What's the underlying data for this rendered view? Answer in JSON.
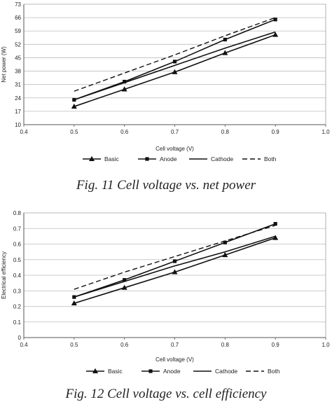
{
  "captions": [
    "Fig. 11 Cell voltage vs. net power",
    "Fig. 12 Cell voltage vs. cell efficiency"
  ],
  "chart_data": [
    {
      "type": "line",
      "xlabel": "Cell voltage (V)",
      "ylabel": "Net power (W)",
      "xlim": [
        0.4,
        1.0
      ],
      "ylim": [
        10,
        73
      ],
      "xticks": [
        "0.4",
        "0.5",
        "0.6",
        "0.7",
        "0.8",
        "0.9",
        "1.0"
      ],
      "yticks": [
        "10",
        "17",
        "24",
        "31",
        "38",
        "45",
        "52",
        "59",
        "66",
        "73"
      ],
      "grid": "horizontal",
      "legend": "bottom",
      "x": [
        0.5,
        0.6,
        0.7,
        0.8,
        0.9
      ],
      "series": [
        {
          "name": "Basic",
          "values": [
            19.5,
            28.5,
            37.5,
            47.5,
            57.0
          ],
          "marker": "triangle",
          "dash": "solid"
        },
        {
          "name": "Anode",
          "values": [
            23.0,
            32.5,
            43.0,
            54.5,
            65.0
          ],
          "marker": "square",
          "dash": "solid"
        },
        {
          "name": "Cathode",
          "values": [
            23.0,
            32.0,
            41.0,
            50.0,
            58.5
          ],
          "marker": "none",
          "dash": "solid"
        },
        {
          "name": "Both",
          "values": [
            27.5,
            37.0,
            46.5,
            56.5,
            66.0
          ],
          "marker": "none",
          "dash": "dashed"
        }
      ]
    },
    {
      "type": "line",
      "xlabel": "Cell voltage (V)",
      "ylabel": "Electrical efficiency",
      "xlim": [
        0.4,
        1.0
      ],
      "ylim": [
        0,
        0.8
      ],
      "xticks": [
        "0.4",
        "0.5",
        "0.6",
        "0.7",
        "0.8",
        "0.9",
        "1.0"
      ],
      "yticks": [
        "0",
        "0.1",
        "0.2",
        "0.3",
        "0.4",
        "0.5",
        "0.6",
        "0.7",
        "0.8"
      ],
      "grid": "horizontal",
      "legend": "bottom",
      "x": [
        0.5,
        0.6,
        0.7,
        0.8,
        0.9
      ],
      "series": [
        {
          "name": "Basic",
          "values": [
            0.22,
            0.32,
            0.42,
            0.53,
            0.64
          ],
          "marker": "triangle",
          "dash": "solid"
        },
        {
          "name": "Anode",
          "values": [
            0.26,
            0.37,
            0.49,
            0.61,
            0.73
          ],
          "marker": "square",
          "dash": "solid"
        },
        {
          "name": "Cathode",
          "values": [
            0.26,
            0.36,
            0.46,
            0.55,
            0.65
          ],
          "marker": "none",
          "dash": "solid"
        },
        {
          "name": "Both",
          "values": [
            0.31,
            0.42,
            0.52,
            0.62,
            0.72
          ],
          "marker": "none",
          "dash": "dashed"
        }
      ]
    }
  ]
}
